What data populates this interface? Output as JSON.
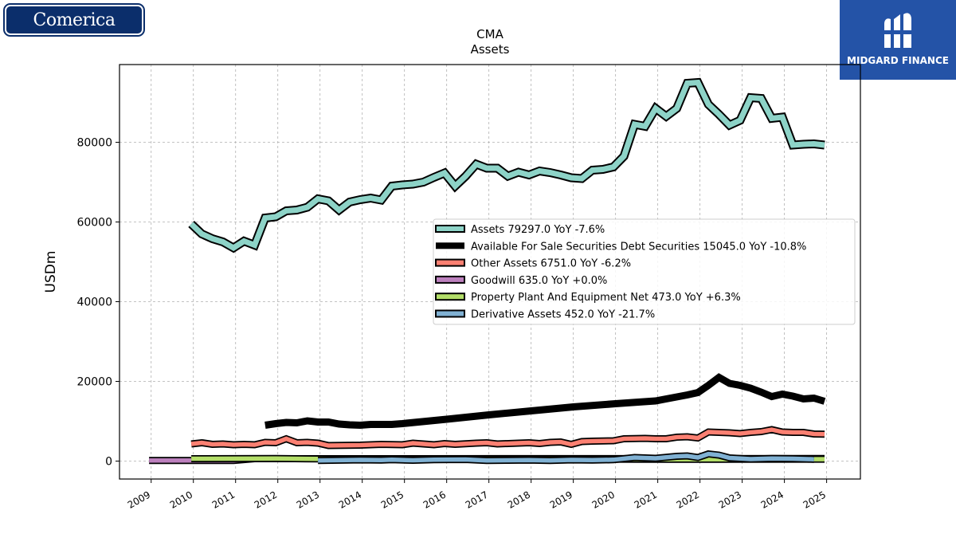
{
  "logos": {
    "left_text": "Comerica",
    "right_text": "MIDGARD FINANCE"
  },
  "colors": {
    "assets": "#8dd3c7",
    "afs": "#000000",
    "other": "#fb8072",
    "goodwill": "#bc80bd",
    "ppe": "#b3de69",
    "derivative": "#80b1d3",
    "brand_left": "#0b2e6b",
    "brand_right": "#2453a7"
  },
  "chart_data": {
    "type": "line",
    "title": "CMA",
    "subtitle": "Assets",
    "xlabel": "",
    "ylabel": "USDm",
    "xlim": [
      2008.25,
      2025.8
    ],
    "ylim": [
      -4500,
      99500
    ],
    "grid": true,
    "legend_position": "center-right",
    "y_ticks": [
      0,
      20000,
      40000,
      60000,
      80000
    ],
    "y_tick_labels": [
      "0",
      "20000",
      "40000",
      "60000",
      "80000"
    ],
    "x_ticks": [
      2009,
      2010,
      2011,
      2012,
      2013,
      2014,
      2015,
      2016,
      2017,
      2018,
      2019,
      2020,
      2021,
      2022,
      2023,
      2024,
      2025
    ],
    "x_tick_labels": [
      "2009",
      "2010",
      "2011",
      "2012",
      "2013",
      "2014",
      "2015",
      "2016",
      "2017",
      "2018",
      "2019",
      "2020",
      "2021",
      "2022",
      "2023",
      "2024",
      "2025"
    ],
    "series": [
      {
        "name": "Assets",
        "legend_label": "Assets  79297.0 YoY -7.6%",
        "color_key": "assets",
        "width": "thick",
        "outlined": true,
        "points": [
          [
            2009.95,
            59500
          ],
          [
            2010.2,
            57000
          ],
          [
            2010.45,
            55800
          ],
          [
            2010.7,
            55000
          ],
          [
            2010.95,
            53500
          ],
          [
            2011.2,
            55200
          ],
          [
            2011.45,
            54200
          ],
          [
            2011.7,
            61000
          ],
          [
            2011.95,
            61300
          ],
          [
            2012.2,
            62800
          ],
          [
            2012.45,
            63000
          ],
          [
            2012.7,
            63700
          ],
          [
            2012.95,
            65800
          ],
          [
            2013.2,
            65300
          ],
          [
            2013.45,
            63000
          ],
          [
            2013.7,
            65000
          ],
          [
            2013.95,
            65600
          ],
          [
            2014.2,
            66000
          ],
          [
            2014.45,
            65500
          ],
          [
            2014.7,
            69000
          ],
          [
            2014.95,
            69300
          ],
          [
            2015.2,
            69500
          ],
          [
            2015.45,
            70000
          ],
          [
            2015.7,
            71200
          ],
          [
            2015.95,
            72300
          ],
          [
            2016.2,
            69000
          ],
          [
            2016.45,
            71500
          ],
          [
            2016.7,
            74500
          ],
          [
            2016.95,
            73500
          ],
          [
            2017.2,
            73500
          ],
          [
            2017.45,
            71500
          ],
          [
            2017.7,
            72500
          ],
          [
            2017.95,
            71800
          ],
          [
            2018.2,
            72800
          ],
          [
            2018.45,
            72400
          ],
          [
            2018.7,
            71800
          ],
          [
            2018.95,
            71100
          ],
          [
            2019.2,
            70900
          ],
          [
            2019.45,
            73000
          ],
          [
            2019.7,
            73200
          ],
          [
            2019.95,
            73800
          ],
          [
            2020.2,
            76500
          ],
          [
            2020.45,
            84500
          ],
          [
            2020.7,
            84000
          ],
          [
            2020.95,
            88500
          ],
          [
            2021.2,
            86500
          ],
          [
            2021.45,
            88500
          ],
          [
            2021.7,
            94800
          ],
          [
            2021.95,
            95000
          ],
          [
            2022.2,
            89500
          ],
          [
            2022.45,
            87000
          ],
          [
            2022.7,
            84300
          ],
          [
            2022.95,
            85500
          ],
          [
            2023.2,
            91200
          ],
          [
            2023.45,
            91000
          ],
          [
            2023.7,
            86000
          ],
          [
            2023.95,
            86300
          ],
          [
            2024.2,
            79300
          ],
          [
            2024.45,
            79500
          ],
          [
            2024.7,
            79600
          ],
          [
            2024.95,
            79300
          ]
        ]
      },
      {
        "name": "Available For Sale Securities Debt Securities",
        "legend_label": "Available For Sale Securities Debt Securities  15045.0 YoY -10.8%",
        "color_key": "afs",
        "width": "thick",
        "outlined": false,
        "points": [
          [
            2011.7,
            9000
          ],
          [
            2011.95,
            9400
          ],
          [
            2012.2,
            9700
          ],
          [
            2012.45,
            9600
          ],
          [
            2012.7,
            10100
          ],
          [
            2012.95,
            9800
          ],
          [
            2013.2,
            9800
          ],
          [
            2013.45,
            9300
          ],
          [
            2013.7,
            9100
          ],
          [
            2013.95,
            9000
          ],
          [
            2014.2,
            9200
          ],
          [
            2014.45,
            9200
          ],
          [
            2014.7,
            9200
          ],
          [
            2014.95,
            9400
          ],
          [
            2016.0,
            10500
          ],
          [
            2017.0,
            11600
          ],
          [
            2018.0,
            12600
          ],
          [
            2019.0,
            13600
          ],
          [
            2020.0,
            14400
          ],
          [
            2020.95,
            15100
          ],
          [
            2021.2,
            15600
          ],
          [
            2021.45,
            16100
          ],
          [
            2021.7,
            16600
          ],
          [
            2021.95,
            17200
          ],
          [
            2022.2,
            19000
          ],
          [
            2022.45,
            21000
          ],
          [
            2022.7,
            19500
          ],
          [
            2022.95,
            19000
          ],
          [
            2023.2,
            18300
          ],
          [
            2023.45,
            17300
          ],
          [
            2023.7,
            16200
          ],
          [
            2023.95,
            16800
          ],
          [
            2024.2,
            16300
          ],
          [
            2024.45,
            15600
          ],
          [
            2024.7,
            15800
          ],
          [
            2024.95,
            15000
          ]
        ]
      },
      {
        "name": "Other Assets",
        "legend_label": "Other Assets  6751.0 YoY -6.2%",
        "color_key": "other",
        "width": "medium",
        "outlined": true,
        "points": [
          [
            2009.95,
            4300
          ],
          [
            2010.2,
            4600
          ],
          [
            2010.45,
            4200
          ],
          [
            2010.7,
            4300
          ],
          [
            2010.95,
            4100
          ],
          [
            2011.2,
            4200
          ],
          [
            2011.45,
            4100
          ],
          [
            2011.7,
            4700
          ],
          [
            2011.95,
            4600
          ],
          [
            2012.2,
            5600
          ],
          [
            2012.45,
            4600
          ],
          [
            2012.7,
            4700
          ],
          [
            2012.95,
            4500
          ],
          [
            2013.2,
            3900
          ],
          [
            2013.95,
            4000
          ],
          [
            2014.45,
            4200
          ],
          [
            2014.95,
            4100
          ],
          [
            2015.2,
            4500
          ],
          [
            2015.45,
            4300
          ],
          [
            2015.7,
            4100
          ],
          [
            2015.95,
            4400
          ],
          [
            2016.2,
            4200
          ],
          [
            2016.7,
            4500
          ],
          [
            2016.95,
            4600
          ],
          [
            2017.2,
            4300
          ],
          [
            2017.7,
            4500
          ],
          [
            2017.95,
            4600
          ],
          [
            2018.2,
            4400
          ],
          [
            2018.45,
            4700
          ],
          [
            2018.7,
            4800
          ],
          [
            2018.95,
            4200
          ],
          [
            2019.2,
            4900
          ],
          [
            2019.45,
            5000
          ],
          [
            2019.95,
            5100
          ],
          [
            2020.2,
            5600
          ],
          [
            2020.7,
            5700
          ],
          [
            2020.95,
            5600
          ],
          [
            2021.2,
            5600
          ],
          [
            2021.45,
            6000
          ],
          [
            2021.7,
            6100
          ],
          [
            2021.95,
            5800
          ],
          [
            2022.2,
            7300
          ],
          [
            2022.45,
            7200
          ],
          [
            2022.7,
            7100
          ],
          [
            2022.95,
            6900
          ],
          [
            2023.2,
            7200
          ],
          [
            2023.45,
            7400
          ],
          [
            2023.7,
            7900
          ],
          [
            2023.95,
            7300
          ],
          [
            2024.2,
            7200
          ],
          [
            2024.45,
            7200
          ],
          [
            2024.7,
            6800
          ],
          [
            2024.95,
            6750
          ]
        ]
      },
      {
        "name": "Goodwill",
        "legend_label": "Goodwill  635.0 YoY +0.0%",
        "color_key": "goodwill",
        "width": "medium",
        "outlined": true,
        "points": [
          [
            2008.95,
            150
          ],
          [
            2010.95,
            150
          ],
          [
            2011.45,
            600
          ],
          [
            2024.95,
            635
          ]
        ]
      },
      {
        "name": "Property Plant And Equipment Net",
        "legend_label": "Property Plant And Equipment Net  473.0 YoY +6.3%",
        "color_key": "ppe",
        "width": "medium",
        "outlined": true,
        "points": [
          [
            2009.95,
            600
          ],
          [
            2011.95,
            650
          ],
          [
            2012.95,
            550
          ],
          [
            2014.95,
            500
          ],
          [
            2016.95,
            500
          ],
          [
            2018.95,
            500
          ],
          [
            2020.95,
            450
          ],
          [
            2021.95,
            450
          ],
          [
            2024.95,
            473
          ]
        ]
      },
      {
        "name": "Derivative Assets",
        "legend_label": "Derivative Assets  452.0 YoY -21.7%",
        "color_key": "derivative",
        "width": "medium",
        "outlined": true,
        "points": [
          [
            2012.95,
            150
          ],
          [
            2013.95,
            300
          ],
          [
            2014.45,
            250
          ],
          [
            2014.7,
            350
          ],
          [
            2015.2,
            200
          ],
          [
            2015.7,
            350
          ],
          [
            2016.45,
            400
          ],
          [
            2016.95,
            150
          ],
          [
            2017.45,
            200
          ],
          [
            2017.95,
            250
          ],
          [
            2018.45,
            150
          ],
          [
            2018.95,
            300
          ],
          [
            2019.45,
            250
          ],
          [
            2019.95,
            350
          ],
          [
            2020.45,
            900
          ],
          [
            2020.95,
            700
          ],
          [
            2021.45,
            1200
          ],
          [
            2021.7,
            1300
          ],
          [
            2021.95,
            900
          ],
          [
            2022.2,
            1800
          ],
          [
            2022.45,
            1500
          ],
          [
            2022.7,
            800
          ],
          [
            2023.2,
            500
          ],
          [
            2023.7,
            650
          ],
          [
            2024.2,
            600
          ],
          [
            2024.7,
            452
          ]
        ]
      }
    ]
  }
}
